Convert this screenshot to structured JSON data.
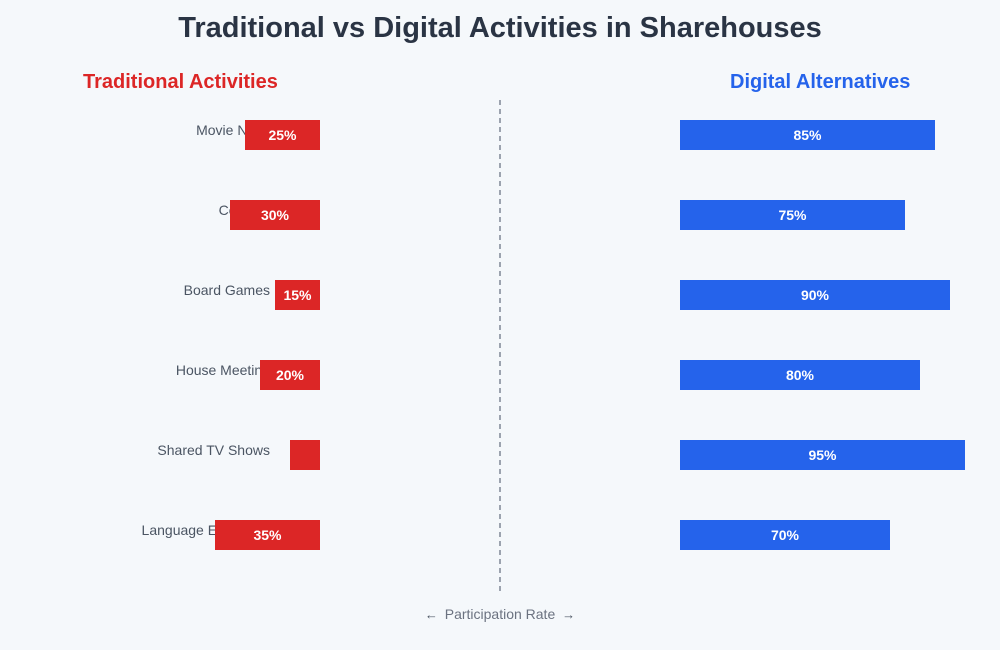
{
  "chart_data": {
    "type": "bar",
    "title": "Traditional vs Digital Activities in Sharehouses",
    "categories": [
      "Movie Night",
      "Cooking",
      "Board Games",
      "House Meeting",
      "Shared TV Shows",
      "Language Exchange"
    ],
    "series": [
      {
        "name": "Traditional Activities",
        "values": [
          25,
          30,
          15,
          20,
          10,
          35
        ],
        "color": "#dc2626"
      },
      {
        "name": "Digital Alternatives",
        "values": [
          85,
          75,
          90,
          80,
          95,
          70
        ],
        "color": "#2563eb"
      }
    ],
    "value_labels": {
      "traditional": [
        "25%",
        "30%",
        "15%",
        "20%",
        "",
        "35%"
      ],
      "digital": [
        "85%",
        "75%",
        "90%",
        "80%",
        "95%",
        "70%"
      ]
    },
    "xlabel": "Participation Rate",
    "axis_arrows": {
      "left": "←",
      "right": "→"
    },
    "divider_color": "#9ca3af",
    "label_color": "#4b5563"
  }
}
